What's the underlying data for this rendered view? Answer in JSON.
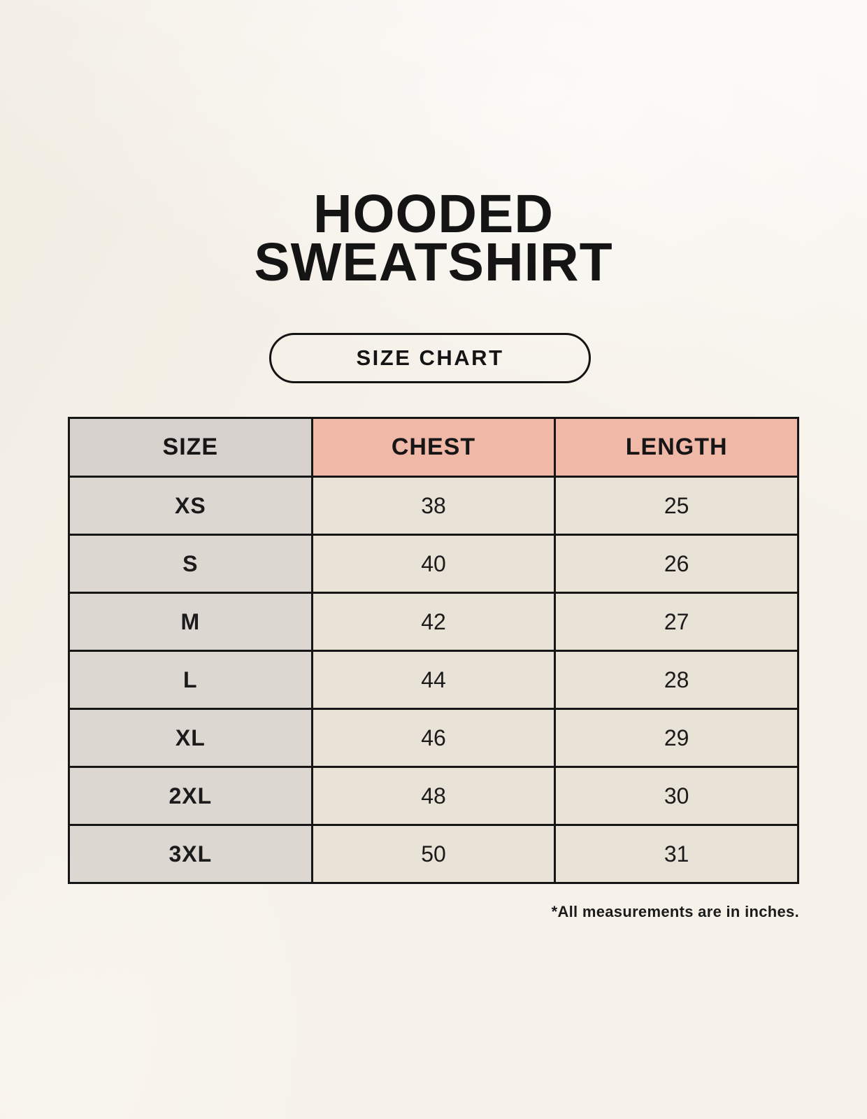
{
  "page": {
    "title_line1": "HOODED",
    "title_line2": "SWEATSHIRT",
    "badge_label": "SIZE CHART",
    "footnote": "*All measurements are in inches."
  },
  "colors": {
    "background": "#f6f2ea",
    "accent_header": "#f0b8a6",
    "size_header_bg": "#d7d1cd",
    "size_cell_bg": "#ddd7d2",
    "value_cell_bg": "#e9e2d6",
    "border": "#161616",
    "text": "#1b1b1b"
  },
  "chart_data": {
    "type": "table",
    "title": "Hooded Sweatshirt Size Chart",
    "columns": [
      "SIZE",
      "CHEST",
      "LENGTH"
    ],
    "rows": [
      {
        "size": "XS",
        "chest": "38",
        "length": "25"
      },
      {
        "size": "S",
        "chest": "40",
        "length": "26"
      },
      {
        "size": "M",
        "chest": "42",
        "length": "27"
      },
      {
        "size": "L",
        "chest": "44",
        "length": "28"
      },
      {
        "size": "XL",
        "chest": "46",
        "length": "29"
      },
      {
        "size": "2XL",
        "chest": "48",
        "length": "30"
      },
      {
        "size": "3XL",
        "chest": "50",
        "length": "31"
      }
    ],
    "units": "inches"
  }
}
